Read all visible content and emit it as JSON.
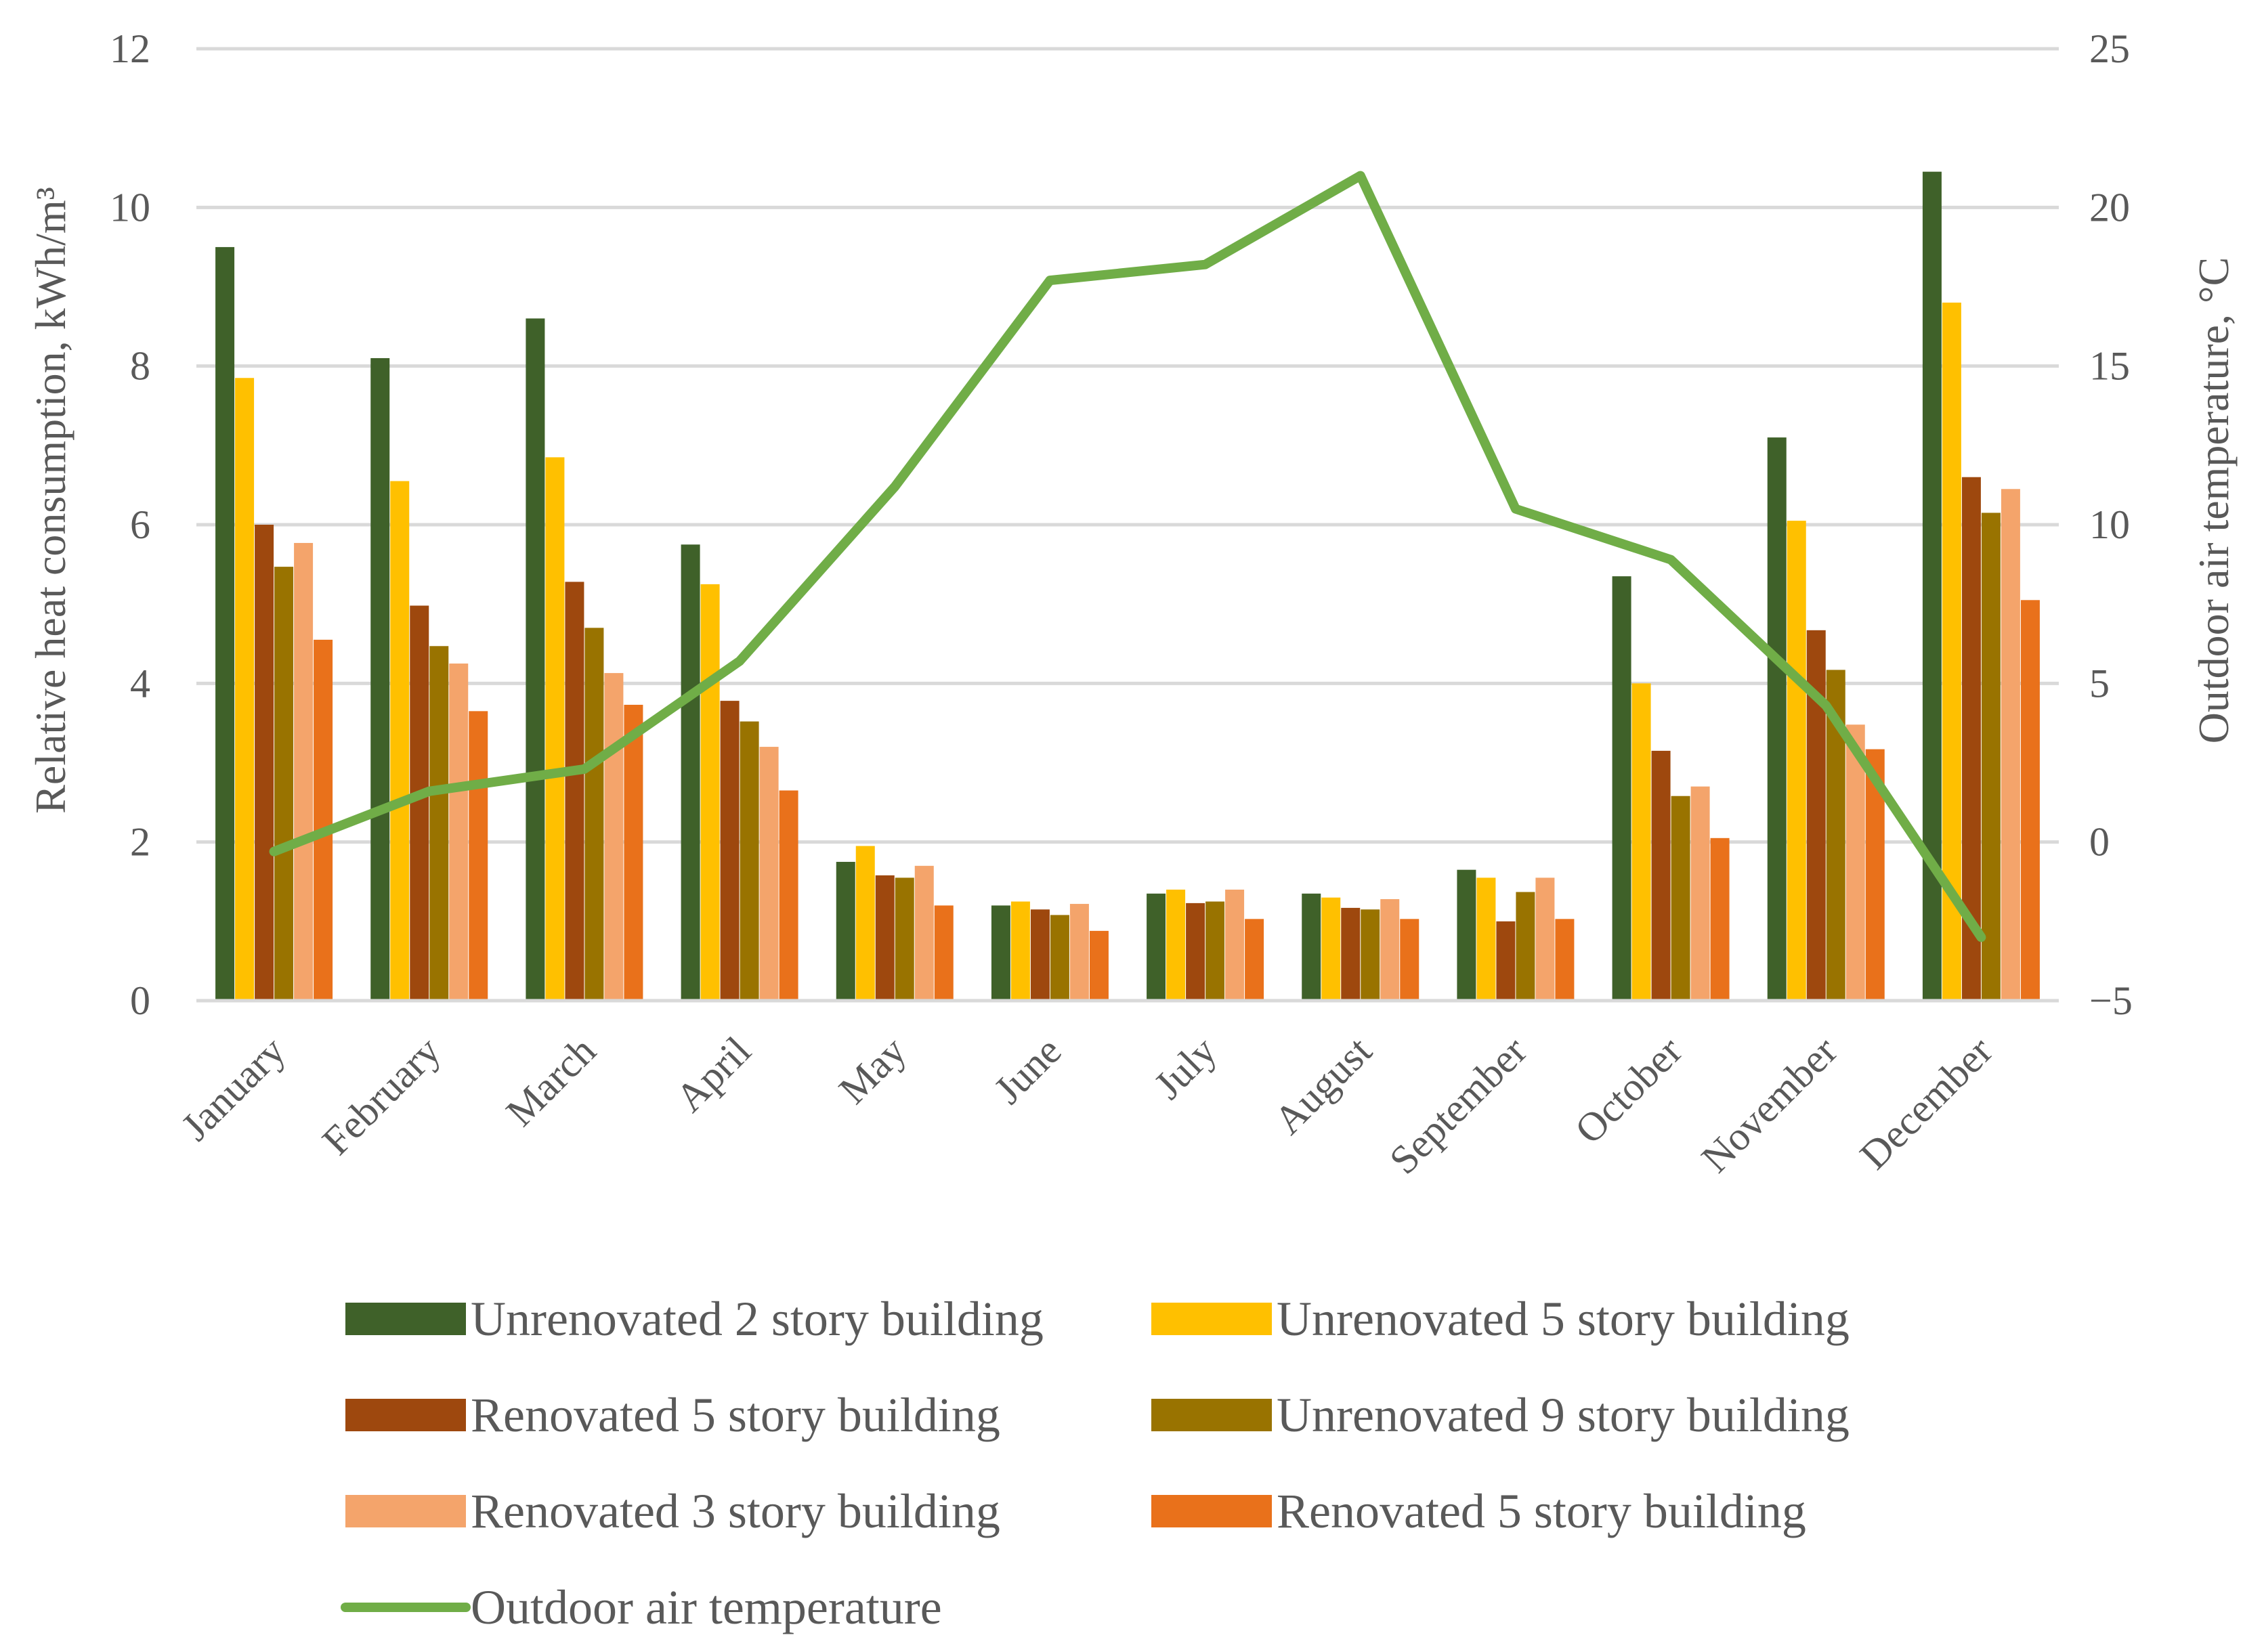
{
  "chart_data": {
    "type": "bar",
    "title": "",
    "categories": [
      "January",
      "February",
      "March",
      "April",
      "May",
      "June",
      "July",
      "August",
      "September",
      "October",
      "November",
      "December"
    ],
    "ylabel": "Relative heat consumption, kWh/m³",
    "y2label": "Outdoor air temperature, °C",
    "ylim": [
      0,
      12
    ],
    "y2lim": [
      -5,
      25
    ],
    "yticks": [
      "0",
      "2",
      "4",
      "6",
      "8",
      "10",
      "12"
    ],
    "y2ticks": [
      "−5",
      "0",
      "5",
      "10",
      "15",
      "20",
      "25"
    ],
    "grid": true,
    "legend_position": "bottom",
    "series": [
      {
        "name": "Unrenovated 2 story building",
        "color": "#3f6129",
        "values": [
          9.5,
          8.1,
          8.6,
          5.75,
          1.75,
          1.2,
          1.35,
          1.35,
          1.65,
          5.35,
          7.1,
          10.45
        ]
      },
      {
        "name": "Unrenovated 5 story building",
        "color": "#ffc000",
        "values": [
          7.85,
          6.55,
          6.85,
          5.25,
          1.95,
          1.25,
          1.4,
          1.3,
          1.55,
          4.0,
          6.05,
          8.8
        ]
      },
      {
        "name": "Renovated 5 story building",
        "color": "#9e480e",
        "values": [
          6.0,
          4.98,
          5.28,
          3.78,
          1.58,
          1.15,
          1.23,
          1.17,
          1.0,
          3.15,
          4.67,
          6.6
        ]
      },
      {
        "name": "Unrenovated 9 story building",
        "color": "#997300",
        "values": [
          5.47,
          4.47,
          4.7,
          3.52,
          1.55,
          1.08,
          1.25,
          1.15,
          1.37,
          2.58,
          4.17,
          6.15
        ]
      },
      {
        "name": "Renovated 3 story building",
        "color": "#f4a46b",
        "values": [
          5.77,
          4.25,
          4.13,
          3.2,
          1.7,
          1.22,
          1.4,
          1.28,
          1.55,
          2.7,
          3.48,
          6.45
        ]
      },
      {
        "name": "Renovated 5 story building",
        "color": "#e9711b",
        "values": [
          4.55,
          3.65,
          3.73,
          2.65,
          1.2,
          0.88,
          1.03,
          1.03,
          1.03,
          2.05,
          3.17,
          5.05
        ]
      }
    ],
    "line_series": {
      "name": "Outdoor air temperature",
      "color": "#70ad47",
      "axis": "right",
      "values": [
        -0.3,
        1.6,
        2.3,
        5.7,
        11.2,
        17.7,
        18.2,
        21.0,
        10.5,
        8.9,
        4.3,
        -3.0
      ]
    }
  }
}
